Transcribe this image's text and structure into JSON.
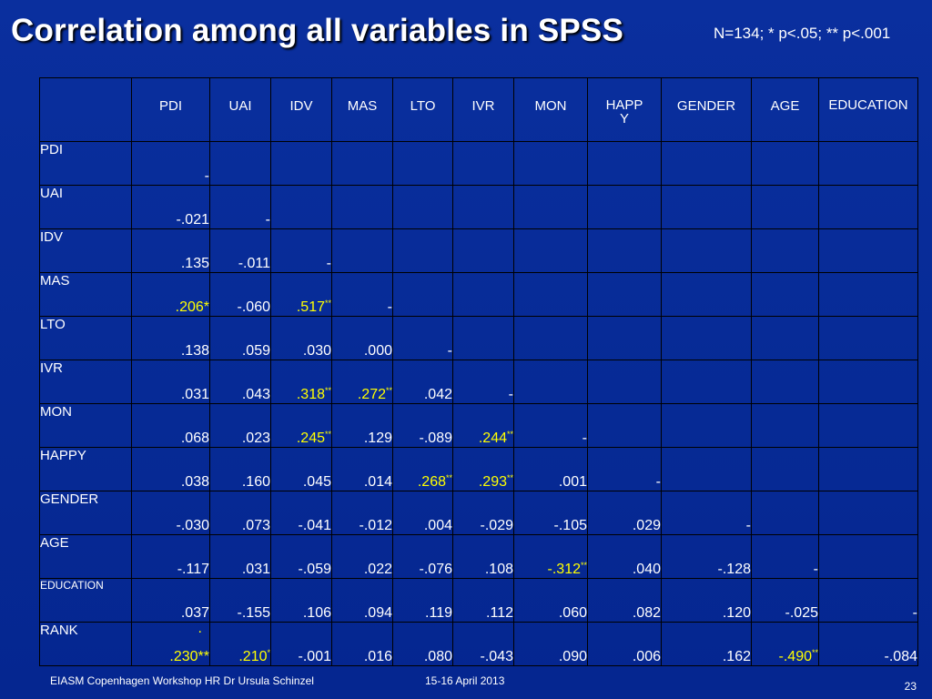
{
  "title": "Correlation among all variables in SPSS",
  "stats_note": "N=134; * p<.05; ** p<.001",
  "columns": [
    "PDI",
    "UAI",
    "IDV",
    "MAS",
    "LTO",
    "IVR",
    "MON",
    "HAPPY",
    "GENDER",
    "AGE",
    "EDUCATION"
  ],
  "rows": [
    {
      "label": "PDI",
      "cells": [
        {
          "v": "-"
        }
      ]
    },
    {
      "label": "UAI",
      "cells": [
        {
          "v": "-.021"
        },
        {
          "v": "-"
        }
      ]
    },
    {
      "label": "IDV",
      "cells": [
        {
          "v": ".135"
        },
        {
          "v": "-.011"
        },
        {
          "v": "-"
        }
      ]
    },
    {
      "label": "MAS",
      "cells": [
        {
          "v": ".206*",
          "hl": true
        },
        {
          "v": "-.060"
        },
        {
          "v": ".517",
          "sup": "**",
          "hl": true
        },
        {
          "v": "-"
        }
      ]
    },
    {
      "label": "LTO",
      "cells": [
        {
          "v": ".138"
        },
        {
          "v": ".059"
        },
        {
          "v": ".030"
        },
        {
          "v": ".000"
        },
        {
          "v": "-"
        }
      ]
    },
    {
      "label": "IVR",
      "cells": [
        {
          "v": ".031"
        },
        {
          "v": ".043"
        },
        {
          "v": ".318",
          "sup": "**",
          "hl": true
        },
        {
          "v": ".272",
          "sup": "**",
          "hl": true
        },
        {
          "v": ".042"
        },
        {
          "v": "-"
        }
      ]
    },
    {
      "label": "MON",
      "cells": [
        {
          "v": ".068"
        },
        {
          "v": ".023"
        },
        {
          "v": ".245",
          "sup": "**",
          "hl": true
        },
        {
          "v": ".129"
        },
        {
          "v": "-.089"
        },
        {
          "v": ".244",
          "sup": "**",
          "hl": true
        },
        {
          "v": "-"
        }
      ]
    },
    {
      "label": "HAPPY",
      "cells": [
        {
          "v": ".038"
        },
        {
          "v": ".160"
        },
        {
          "v": ".045"
        },
        {
          "v": ".014"
        },
        {
          "v": ".268",
          "sup": "**",
          "hl": true
        },
        {
          "v": ".293",
          "sup": "**",
          "hl": true
        },
        {
          "v": ".001"
        },
        {
          "v": "-"
        }
      ]
    },
    {
      "label": "GENDER",
      "cells": [
        {
          "v": "-.030"
        },
        {
          "v": ".073"
        },
        {
          "v": "-.041"
        },
        {
          "v": "-.012"
        },
        {
          "v": ".004"
        },
        {
          "v": "-.029"
        },
        {
          "v": "-.105"
        },
        {
          "v": ".029"
        },
        {
          "v": "-"
        }
      ]
    },
    {
      "label": "AGE",
      "cells": [
        {
          "v": "-.117"
        },
        {
          "v": ".031"
        },
        {
          "v": "-.059"
        },
        {
          "v": ".022"
        },
        {
          "v": "-.076"
        },
        {
          "v": ".108"
        },
        {
          "v": "-.312",
          "sup": "**",
          "hl": true
        },
        {
          "v": ".040"
        },
        {
          "v": "-.128"
        },
        {
          "v": "-"
        }
      ]
    },
    {
      "label": "EDUCATION",
      "cells": [
        {
          "v": ".037"
        },
        {
          "v": "-.155"
        },
        {
          "v": ".106"
        },
        {
          "v": ".094"
        },
        {
          "v": ".119"
        },
        {
          "v": ".112"
        },
        {
          "v": ".060"
        },
        {
          "v": ".082"
        },
        {
          "v": ".120"
        },
        {
          "v": "-.025"
        },
        {
          "v": "-"
        }
      ]
    },
    {
      "label": "RANK",
      "cells": [
        {
          "v": ".230**",
          "hl": true,
          "dot": "."
        },
        {
          "v": ".210",
          "sup": "*",
          "hl": true
        },
        {
          "v": "-.001"
        },
        {
          "v": ".016"
        },
        {
          "v": ".080"
        },
        {
          "v": "-.043"
        },
        {
          "v": ".090"
        },
        {
          "v": ".006"
        },
        {
          "v": ".162"
        },
        {
          "v": "-.490",
          "sup": "**",
          "hl": true
        },
        {
          "v": "-.084"
        }
      ]
    }
  ],
  "footer": {
    "left": "EIASM  Copenhagen Workshop HR Dr Ursula Schinzel",
    "date": "15-16 April 2013",
    "page": "23"
  },
  "colors": {
    "background": "#062a95",
    "text": "#ffffff",
    "highlight": "#ffff00"
  }
}
